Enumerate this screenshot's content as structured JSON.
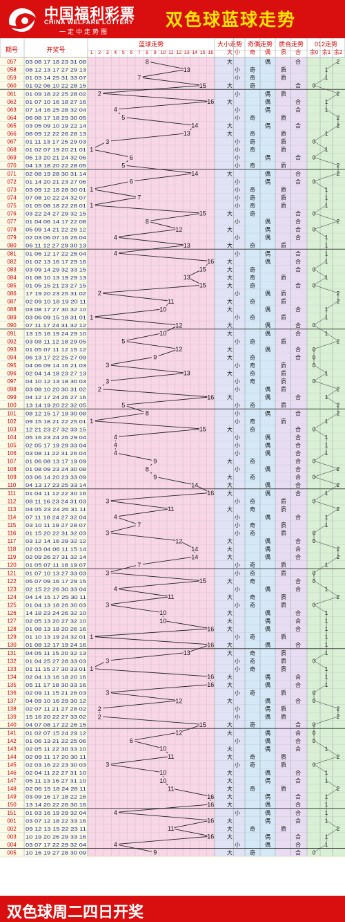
{
  "header": {
    "brand_cn": "中国福利彩票",
    "brand_en": "CHINA WELFARE LOTTERY",
    "brand_slogan": "一定中走势图",
    "title": "双色球蓝球走势"
  },
  "footer": {
    "text": "双色球周二四日开奖"
  },
  "columns": {
    "period": "期号",
    "numbers": "开奖号",
    "blue_trend": "蓝球走势",
    "size_trend": "大小走势",
    "parity_trend": "奇偶走势",
    "prime_trend": "质合走势",
    "mod_trend": "012走势"
  },
  "subheaders": {
    "big": "大",
    "small": "小",
    "odd": "奇",
    "even": "偶",
    "prime": "质",
    "composite": "合",
    "mod0": "余0",
    "mod1": "余1",
    "mod2": "余2"
  },
  "flags": {
    "big": "大",
    "small": "小",
    "odd": "奇",
    "even": "偶",
    "prime": "质",
    "composite": "合"
  },
  "colors": {
    "brand_red": "#d90f0f",
    "title_yellow": "#ffe600",
    "trend_pink": "#f7d6e6",
    "size_blue": "#dfe3f5",
    "parity_blue": "#d4e8f7",
    "prime_lavender": "#e8dcf2",
    "mod_green": "#d9f0d5",
    "period_red": "#d40000",
    "numbers_blue": "#1a2a8a",
    "line_color": "#222222"
  },
  "chart_data": {
    "type": "line",
    "title": "双色球蓝球走势",
    "x_label": "期号",
    "y_label": "蓝球走势",
    "ylim": [
      1,
      16
    ],
    "groups": [
      {
        "start": 57,
        "count": 4
      },
      {
        "start": 61,
        "count": 10
      },
      {
        "start": 71,
        "count": 10
      },
      {
        "start": 81,
        "count": 10
      },
      {
        "start": 91,
        "count": 10
      },
      {
        "start": 101,
        "count": 10
      },
      {
        "start": 111,
        "count": 10
      },
      {
        "start": 121,
        "count": 10
      },
      {
        "start": 131,
        "count": 10
      },
      {
        "start": 141,
        "count": 10
      },
      {
        "start": 151,
        "count": 5
      }
    ],
    "periods": [
      "057",
      "058",
      "059",
      "060",
      "061",
      "062",
      "063",
      "064",
      "065",
      "066",
      "067",
      "068",
      "069",
      "070",
      "071",
      "072",
      "073",
      "074",
      "075",
      "076",
      "077",
      "078",
      "079",
      "080",
      "081",
      "082",
      "083",
      "084",
      "085",
      "086",
      "087",
      "088",
      "089",
      "090",
      "091",
      "092",
      "093",
      "094",
      "095",
      "096",
      "097",
      "098",
      "099",
      "100",
      "101",
      "102",
      "103",
      "104",
      "105",
      "106",
      "107",
      "108",
      "109",
      "110",
      "111",
      "112",
      "113",
      "114",
      "115",
      "116",
      "117",
      "118",
      "119",
      "120",
      "121",
      "122",
      "123",
      "124",
      "125",
      "126",
      "127",
      "128",
      "129",
      "130",
      "131",
      "132",
      "133",
      "134",
      "135",
      "136",
      "137",
      "138",
      "139",
      "140",
      "141",
      "142",
      "143",
      "144",
      "145",
      "146",
      "147",
      "148",
      "149",
      "150",
      "151",
      "001",
      "002",
      "003",
      "004",
      "005"
    ],
    "numbers": [
      "03 08 17 18 23 31 08",
      "08 12 13 17 27 29 13",
      "01 03 14 25 31 33 07",
      "01 02 06 10 22 28 15",
      "01 09 18 22 25 28 02",
      "01 07 10 16 18 27 16",
      "07 14 16 25 28 32 04",
      "06 08 17 18 29 30 05",
      "03 05 09 10 19 22 14",
      "08 09 12 22 26 28 13",
      "01 11 13 17 25 29 03",
      "01 02 07 19 20 21 01",
      "06 13 20 21 24 32 06",
      "04 13 18 20 22 28 05",
      "02 08 19 28 30 31 14",
      "01 14 20 21 23 27 06",
      "03 09 12 18 28 30 01",
      "07 08 10 22 24 32 07",
      "01 05 08 18 22 28 01",
      "03 22 24 27 29 32 15",
      "01 04 06 14 17 22 08",
      "05 09 14 21 22 26 12",
      "02 03 06 07 16 26 04",
      "06 11 12 27 29 30 13",
      "01 06 12 17 22 25 04",
      "01 02 13 16 17 29 16",
      "03 09 14 29 32 33 15",
      "01 08 10 13 19 29 13",
      "01 05 15 21 23 27 15",
      "17 19 20 23 25 31 02",
      "02 09 10 18 19 20 11",
      "03 08 17 27 30 32 10",
      "03 06 09 15 18 31 01",
      "07 11 17 24 31 32 12",
      "13 15 16 19 24 29 10",
      "03 08 11 12 18 29 05",
      "01 05 07 11 12 15 12",
      "06 13 17 22 25 27 09",
      "04 06 09 14 16 21 03",
      "02 04 14 18 23 27 13",
      "04 10 12 13 18 30 03",
      "03 08 10 20 30 31 02",
      "04 12 17 24 26 27 16",
      "13 14 19 20 22 32 05",
      "08 12 15 17 19 30 08",
      "09 15 18 21 22 25 01",
      "12 21 23 27 32 33 15",
      "05 16 23 24 26 29 04",
      "02 05 17 19 29 33 04",
      "03 08 11 22 31 26 04",
      "01 06 08 13 17 19 09",
      "01 08 09 23 24 30 08",
      "03 06 14 20 23 33 09",
      "04 13 17 23 25 33 14",
      "01 04 11 12 22 30 16",
      "08 11 16 23 24 31 03",
      "04 05 23 24 26 31 11",
      "07 11 18 24 27 32 04",
      "03 10 11 19 27 28 07",
      "01 15 20 22 31 32 03",
      "03 12 14 16 29 32 12",
      "02 03 04 06 11 15 14",
      "02 09 26 27 31 32 14",
      "01 05 07 11 18 19 07",
      "01 07 10 13 27 33 03",
      "05 07 09 16 17 29 15",
      "02 15 22 26 30 33 04",
      "04 14 15 17 25 30 11",
      "01 04 13 18 26 30 03",
      "14 18 23 24 26 32 10",
      "02 05 13 20 27 32 10",
      "01 08 13 18 20 26 16",
      "01 10 13 19 24 32 01",
      "01 08 12 17 19 24 16",
      "04 05 11 15 20 32 13",
      "01 04 25 27 28 33 03",
      "01 11 15 27 30 33 01",
      "02 04 13 16 18 20 16",
      "05 11 17 18 30 33 16",
      "02 09 11 15 21 26 03",
      "04 09 10 16 29 30 12",
      "02 07 11 21 27 28 02",
      "15 16 20 22 27 33 02",
      "04 07 08 17 22 26 15",
      "01 02 07 15 24 29 12",
      "01 06 13 21 22 25 06",
      "02 05 11 22 30 33 10",
      "02 09 11 17 20 30 11",
      "02 03 16 22 23 30 03",
      "02 04 11 22 27 31 10",
      "05 11 13 16 27 31 10",
      "02 06 15 18 24 28 11",
      "03 09 16 17 18 22 16",
      "13 14 20 22 26 30 16",
      "01 03 16 19 29 32 04",
      "03 07 12 18 22 33 16",
      "09 12 13 15 22 23 11",
      "10 19 20 26 29 33 16",
      "03 07 17 22 29 32 04",
      "10 16 19 27 28 30 09"
    ],
    "blue": [
      8,
      13,
      7,
      15,
      2,
      16,
      4,
      5,
      14,
      13,
      3,
      1,
      6,
      5,
      14,
      6,
      1,
      7,
      1,
      15,
      8,
      12,
      4,
      13,
      4,
      16,
      15,
      13,
      15,
      2,
      11,
      10,
      1,
      12,
      10,
      5,
      12,
      9,
      3,
      13,
      3,
      2,
      16,
      5,
      8,
      1,
      15,
      4,
      4,
      4,
      9,
      8,
      9,
      14,
      16,
      3,
      11,
      4,
      7,
      3,
      12,
      14,
      14,
      7,
      3,
      15,
      4,
      11,
      3,
      10,
      10,
      16,
      1,
      16,
      13,
      3,
      1,
      16,
      16,
      3,
      12,
      2,
      2,
      15,
      12,
      6,
      10,
      11,
      3,
      10,
      10,
      11,
      16,
      16,
      4,
      16,
      11,
      16,
      4,
      9
    ],
    "rows": [
      [
        "大",
        "偶",
        "合",
        2
      ],
      [
        "小",
        "奇",
        "质",
        1
      ],
      [
        "小",
        "奇",
        "质",
        1
      ],
      [
        "大",
        "奇",
        "合",
        0
      ],
      [
        "小",
        "偶",
        "质",
        2
      ],
      [
        "大",
        "偶",
        "合",
        1
      ],
      [
        "小",
        "偶",
        "合",
        1
      ],
      [
        "小",
        "奇",
        "质",
        2
      ],
      [
        "大",
        "偶",
        "合",
        2
      ],
      [
        "大",
        "奇",
        "质",
        1
      ],
      [
        "小",
        "奇",
        "质",
        0
      ],
      [
        "小",
        "奇",
        "质",
        1
      ],
      [
        "小",
        "偶",
        "合",
        0
      ],
      [
        "小",
        "奇",
        "质",
        2
      ],
      [
        "大",
        "偶",
        "合",
        2
      ],
      [
        "小",
        "偶",
        "合",
        0
      ],
      [
        "小",
        "奇",
        "质",
        1
      ],
      [
        "小",
        "奇",
        "质",
        1
      ],
      [
        "小",
        "奇",
        "质",
        1
      ],
      [
        "大",
        "奇",
        "合",
        0
      ],
      [
        "小",
        "偶",
        "合",
        2
      ],
      [
        "大",
        "偶",
        "合",
        0
      ],
      [
        "小",
        "偶",
        "合",
        1
      ],
      [
        "大",
        "奇",
        "质",
        1
      ],
      [
        "小",
        "偶",
        "合",
        1
      ],
      [
        "大",
        "偶",
        "合",
        1
      ],
      [
        "大",
        "奇",
        "合",
        0
      ],
      [
        "大",
        "奇",
        "质",
        1
      ],
      [
        "大",
        "奇",
        "合",
        0
      ],
      [
        "小",
        "偶",
        "质",
        2
      ],
      [
        "大",
        "奇",
        "质",
        2
      ],
      [
        "大",
        "偶",
        "合",
        1
      ],
      [
        "小",
        "奇",
        "质",
        1
      ],
      [
        "大",
        "偶",
        "合",
        0
      ],
      [
        "大",
        "偶",
        "合",
        1
      ],
      [
        "小",
        "奇",
        "质",
        2
      ],
      [
        "大",
        "偶",
        "合",
        0
      ],
      [
        "大",
        "奇",
        "合",
        0
      ],
      [
        "小",
        "奇",
        "质",
        0
      ],
      [
        "大",
        "奇",
        "质",
        1
      ],
      [
        "小",
        "奇",
        "质",
        0
      ],
      [
        "小",
        "偶",
        "质",
        2
      ],
      [
        "大",
        "偶",
        "合",
        1
      ],
      [
        "小",
        "奇",
        "质",
        2
      ],
      [
        "小",
        "偶",
        "合",
        2
      ],
      [
        "小",
        "奇",
        "质",
        1
      ],
      [
        "大",
        "奇",
        "合",
        0
      ],
      [
        "小",
        "偶",
        "合",
        1
      ],
      [
        "小",
        "偶",
        "合",
        1
      ],
      [
        "小",
        "偶",
        "合",
        1
      ],
      [
        "大",
        "奇",
        "合",
        0
      ],
      [
        "小",
        "偶",
        "合",
        2
      ],
      [
        "大",
        "奇",
        "合",
        0
      ],
      [
        "大",
        "偶",
        "合",
        2
      ],
      [
        "大",
        "偶",
        "合",
        1
      ],
      [
        "小",
        "奇",
        "质",
        0
      ],
      [
        "大",
        "奇",
        "质",
        2
      ],
      [
        "小",
        "偶",
        "合",
        1
      ],
      [
        "小",
        "奇",
        "质",
        1
      ],
      [
        "小",
        "奇",
        "质",
        0
      ],
      [
        "大",
        "偶",
        "合",
        0
      ],
      [
        "大",
        "偶",
        "合",
        2
      ],
      [
        "大",
        "偶",
        "合",
        2
      ],
      [
        "小",
        "奇",
        "质",
        1
      ],
      [
        "小",
        "奇",
        "质",
        0
      ],
      [
        "大",
        "奇",
        "合",
        0
      ],
      [
        "小",
        "偶",
        "合",
        1
      ],
      [
        "大",
        "奇",
        "质",
        2
      ],
      [
        "小",
        "奇",
        "质",
        0
      ],
      [
        "大",
        "偶",
        "合",
        1
      ],
      [
        "大",
        "偶",
        "合",
        1
      ],
      [
        "大",
        "偶",
        "合",
        1
      ],
      [
        "小",
        "奇",
        "质",
        1
      ],
      [
        "大",
        "偶",
        "合",
        1
      ],
      [
        "大",
        "奇",
        "质",
        1
      ],
      [
        "小",
        "奇",
        "质",
        0
      ],
      [
        "小",
        "奇",
        "质",
        1
      ],
      [
        "大",
        "偶",
        "合",
        1
      ],
      [
        "大",
        "偶",
        "合",
        1
      ],
      [
        "小",
        "奇",
        "质",
        0
      ],
      [
        "大",
        "偶",
        "合",
        0
      ],
      [
        "小",
        "偶",
        "质",
        2
      ],
      [
        "小",
        "偶",
        "质",
        2
      ],
      [
        "大",
        "奇",
        "合",
        0
      ],
      [
        "大",
        "偶",
        "合",
        0
      ],
      [
        "小",
        "偶",
        "合",
        0
      ],
      [
        "大",
        "偶",
        "合",
        1
      ],
      [
        "大",
        "奇",
        "质",
        2
      ],
      [
        "小",
        "奇",
        "质",
        0
      ],
      [
        "大",
        "偶",
        "合",
        1
      ],
      [
        "大",
        "偶",
        "合",
        1
      ],
      [
        "大",
        "奇",
        "质",
        2
      ],
      [
        "大",
        "偶",
        "合",
        1
      ],
      [
        "大",
        "偶",
        "合",
        1
      ],
      [
        "小",
        "偶",
        "合",
        1
      ],
      [
        "大",
        "偶",
        "合",
        1
      ],
      [
        "大",
        "奇",
        "质",
        2
      ],
      [
        "大",
        "偶",
        "合",
        1
      ],
      [
        "小",
        "偶",
        "合",
        1
      ],
      [
        "大",
        "奇",
        "合",
        0
      ]
    ]
  }
}
